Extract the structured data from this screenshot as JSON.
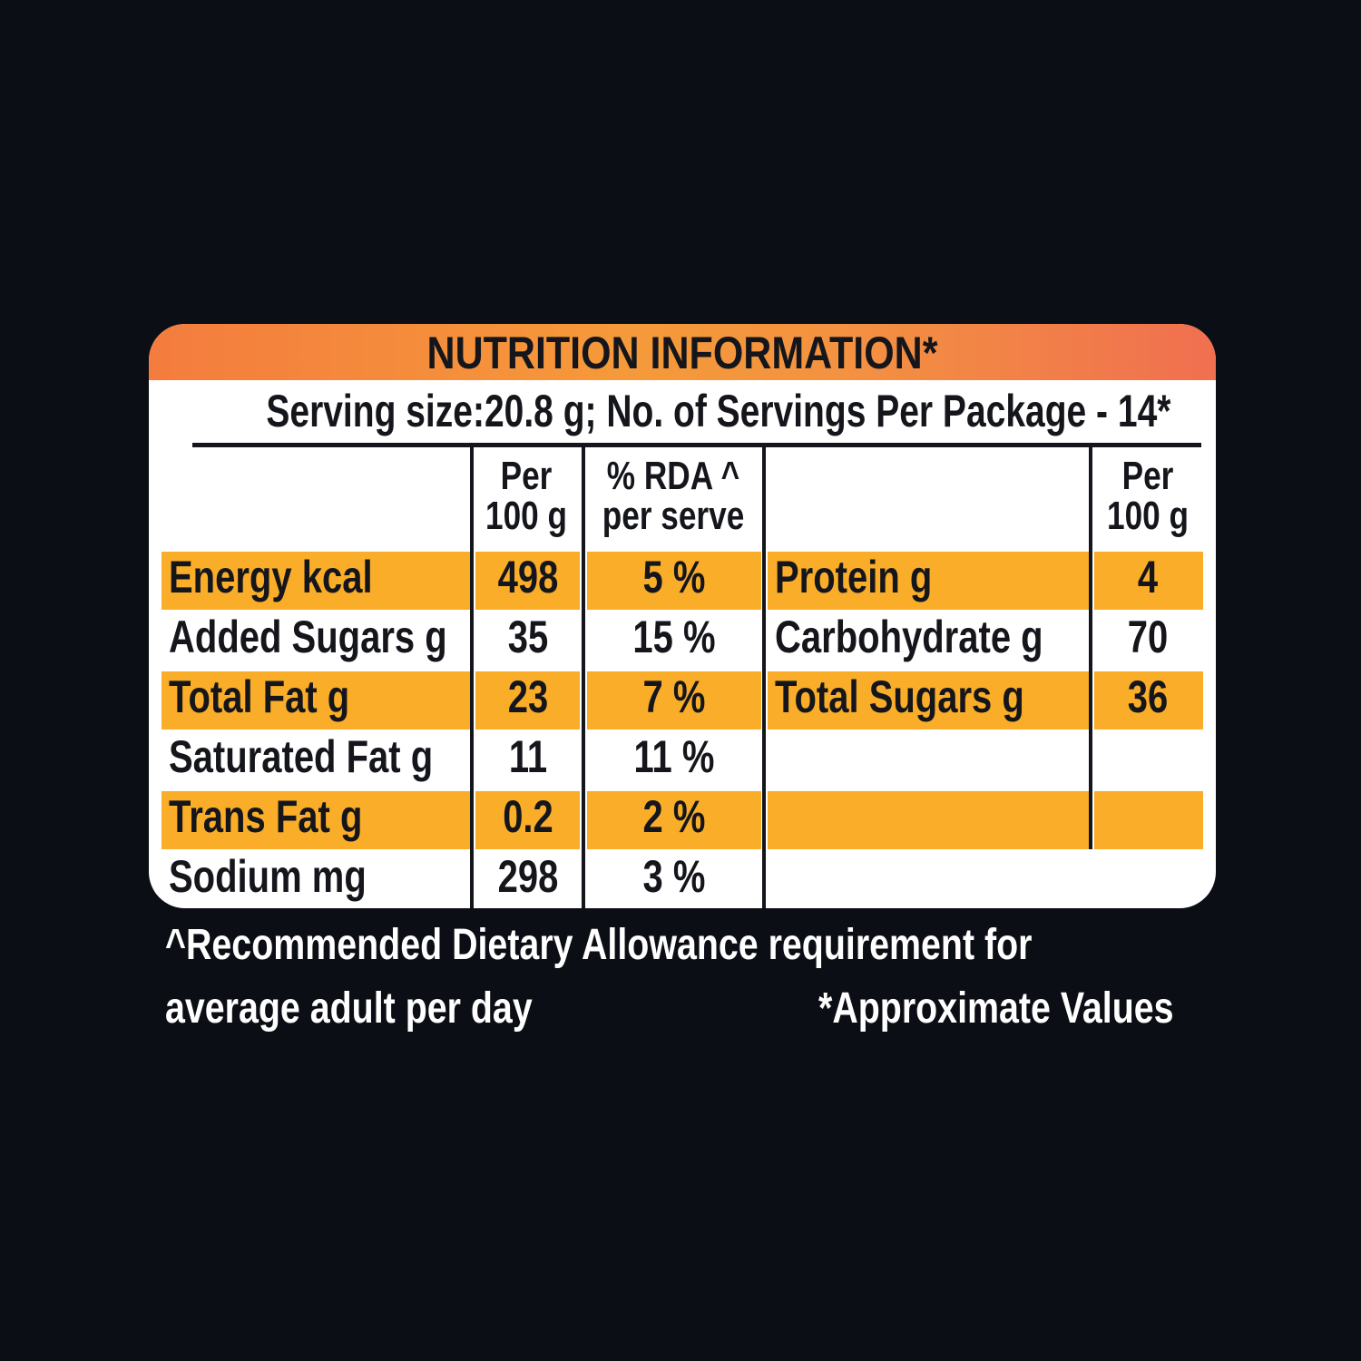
{
  "panel": {
    "title": "NUTRITION INFORMATION*",
    "serving": "Serving size:20.8 g; No. of Servings Per Package - 14*"
  },
  "left_table": {
    "headers": {
      "col1": [
        "Per",
        "100 g"
      ],
      "col2": [
        "% RDA ^",
        "per serve"
      ]
    },
    "rows": [
      {
        "label": "Energy kcal",
        "per100": "498",
        "rda": "5 %"
      },
      {
        "label": "Added Sugars g",
        "per100": "35",
        "rda": "15 %"
      },
      {
        "label": "Total Fat g",
        "per100": "23",
        "rda": "7 %"
      },
      {
        "label": "Saturated Fat g",
        "per100": "11",
        "rda": "11 %"
      },
      {
        "label": "Trans Fat g",
        "per100": "0.2",
        "rda": "2 %"
      },
      {
        "label": "Sodium mg",
        "per100": "298",
        "rda": "3 %"
      }
    ]
  },
  "right_table": {
    "headers": {
      "col1": [
        "Per",
        "100 g"
      ]
    },
    "rows": [
      {
        "label": "Protein g",
        "per100": "4"
      },
      {
        "label": "Carbohydrate g",
        "per100": "70"
      },
      {
        "label": "Total Sugars g",
        "per100": "36"
      }
    ]
  },
  "footnotes": {
    "rda_line1": "^Recommended Dietary Allowance requirement for",
    "rda_line2": "average adult per day",
    "approx": "*Approximate Values"
  },
  "colors": {
    "background": "#0c0e15",
    "band": "#f9ad28",
    "title_band": "#f59a3a",
    "text": "#15161c"
  }
}
